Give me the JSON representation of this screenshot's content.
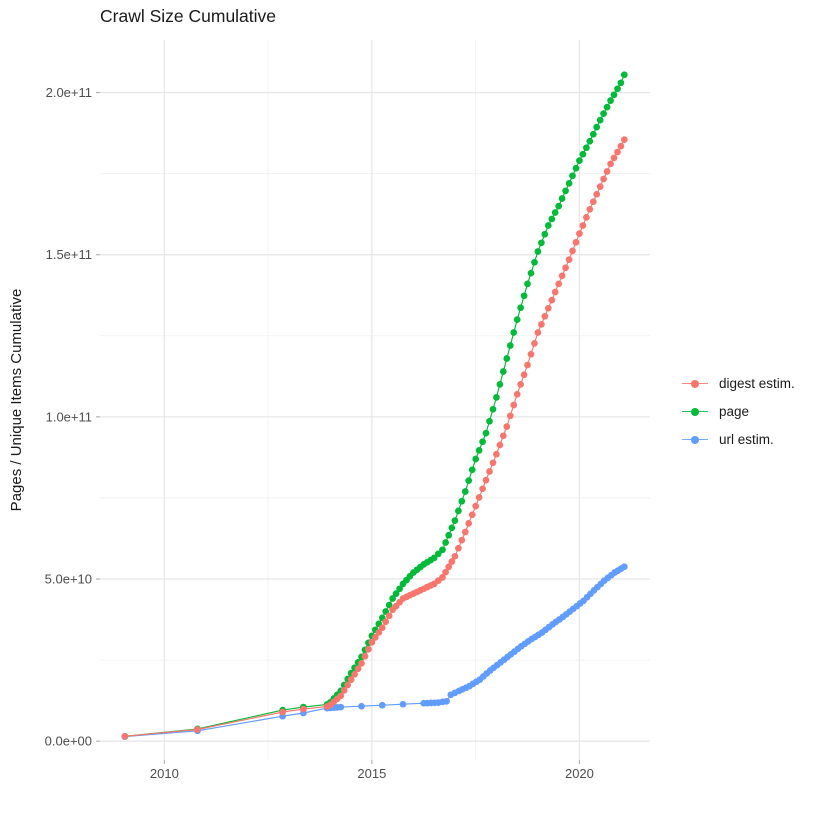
{
  "chart_data": {
    "type": "line",
    "title": "Crawl Size Cumulative",
    "xlabel": "",
    "ylabel": "Pages / Unique Items Cumulative",
    "legend_position": "right",
    "grid": "on",
    "points_shown": true,
    "value_unit": "1e9 (values below are in billions)",
    "axes": {
      "x_range": [
        2008.45,
        2021.7
      ],
      "y_range_e9": [
        -5.8,
        216.2
      ],
      "x_ticks": [
        {
          "v": 2010,
          "label": "2010"
        },
        {
          "v": 2015,
          "label": "2015"
        },
        {
          "v": 2020,
          "label": "2020"
        }
      ],
      "x_minor": [
        2012.5,
        2017.5
      ],
      "y_ticks": [
        {
          "v": 0,
          "label": "0.0e+00"
        },
        {
          "v": 50,
          "label": "5.0e+10"
        },
        {
          "v": 100,
          "label": "1.0e+11"
        },
        {
          "v": 150,
          "label": "1.5e+11"
        },
        {
          "v": 200,
          "label": "2.0e+11"
        }
      ],
      "y_minor": [
        25,
        75,
        125,
        175
      ]
    },
    "series": [
      {
        "name": "digest estim.",
        "color": "#F8766D",
        "points": [
          [
            2009.05,
            1.5
          ],
          [
            2010.8,
            3.6
          ],
          [
            2012.85,
            9.0
          ],
          [
            2013.35,
            9.9
          ],
          [
            2013.92,
            10.7
          ],
          [
            2014.0,
            11.2
          ],
          [
            2014.25,
            14
          ],
          [
            2014.5,
            19
          ],
          [
            2014.75,
            24
          ],
          [
            2015.0,
            30.5
          ],
          [
            2015.25,
            35
          ],
          [
            2015.5,
            40.5
          ],
          [
            2015.75,
            44
          ],
          [
            2016.0,
            45.5
          ],
          [
            2016.25,
            47
          ],
          [
            2016.5,
            48.5
          ],
          [
            2016.7,
            50.5
          ],
          [
            2017.0,
            57
          ],
          [
            2017.25,
            64.5
          ],
          [
            2017.5,
            72.5
          ],
          [
            2017.75,
            80.5
          ],
          [
            2018.0,
            88.5
          ],
          [
            2018.25,
            97
          ],
          [
            2018.5,
            107
          ],
          [
            2018.75,
            116
          ],
          [
            2019.0,
            126
          ],
          [
            2019.25,
            133.5
          ],
          [
            2019.5,
            141
          ],
          [
            2019.75,
            148.5
          ],
          [
            2020.0,
            156.5
          ],
          [
            2020.25,
            164
          ],
          [
            2020.5,
            171
          ],
          [
            2020.75,
            178
          ],
          [
            2021.0,
            183.5
          ],
          [
            2021.08,
            185.5
          ]
        ]
      },
      {
        "name": "page",
        "color": "#00BA38",
        "points": [
          [
            2009.05,
            1.5
          ],
          [
            2010.8,
            3.8
          ],
          [
            2012.85,
            9.6
          ],
          [
            2013.35,
            10.5
          ],
          [
            2013.92,
            11.3
          ],
          [
            2014.0,
            12
          ],
          [
            2014.25,
            15.5
          ],
          [
            2014.5,
            21
          ],
          [
            2014.75,
            26
          ],
          [
            2015.0,
            32.5
          ],
          [
            2015.25,
            38
          ],
          [
            2015.5,
            44
          ],
          [
            2015.75,
            48.5
          ],
          [
            2016.0,
            52
          ],
          [
            2016.25,
            54.5
          ],
          [
            2016.5,
            56.5
          ],
          [
            2016.7,
            59
          ],
          [
            2017.0,
            68
          ],
          [
            2017.25,
            77
          ],
          [
            2017.5,
            87
          ],
          [
            2017.75,
            95
          ],
          [
            2018.0,
            106
          ],
          [
            2018.25,
            118
          ],
          [
            2018.5,
            130
          ],
          [
            2018.75,
            141
          ],
          [
            2019.0,
            151
          ],
          [
            2019.25,
            159
          ],
          [
            2019.5,
            165
          ],
          [
            2019.75,
            172
          ],
          [
            2020.0,
            179
          ],
          [
            2020.25,
            185
          ],
          [
            2020.5,
            191.5
          ],
          [
            2020.75,
            197.5
          ],
          [
            2021.0,
            203
          ],
          [
            2021.08,
            205.5
          ]
        ]
      },
      {
        "name": "url estim.",
        "color": "#619CFF",
        "points": [
          [
            2009.05,
            1.4
          ],
          [
            2010.8,
            3.2
          ],
          [
            2012.85,
            7.7
          ],
          [
            2013.35,
            8.7
          ],
          [
            2013.92,
            10.2
          ],
          [
            2014.25,
            10.5
          ],
          [
            2014.75,
            10.8
          ],
          [
            2015.25,
            11.1
          ],
          [
            2015.75,
            11.4
          ],
          [
            2016.25,
            11.7
          ],
          [
            2016.6,
            11.9
          ],
          [
            2016.8,
            12.3
          ],
          [
            2016.9,
            14.3
          ],
          [
            2017.1,
            15.5
          ],
          [
            2017.35,
            17
          ],
          [
            2017.6,
            19
          ],
          [
            2017.85,
            21.8
          ],
          [
            2018.1,
            24.3
          ],
          [
            2018.35,
            26.8
          ],
          [
            2018.6,
            29.3
          ],
          [
            2018.85,
            31.5
          ],
          [
            2019.1,
            33.5
          ],
          [
            2019.35,
            36
          ],
          [
            2019.6,
            38.3
          ],
          [
            2019.85,
            40.8
          ],
          [
            2020.1,
            43.3
          ],
          [
            2020.35,
            46.5
          ],
          [
            2020.6,
            49.5
          ],
          [
            2020.85,
            52
          ],
          [
            2021.08,
            53.8
          ]
        ]
      }
    ]
  },
  "legend": {
    "items": [
      "digest estim.",
      "page",
      "url estim."
    ]
  }
}
